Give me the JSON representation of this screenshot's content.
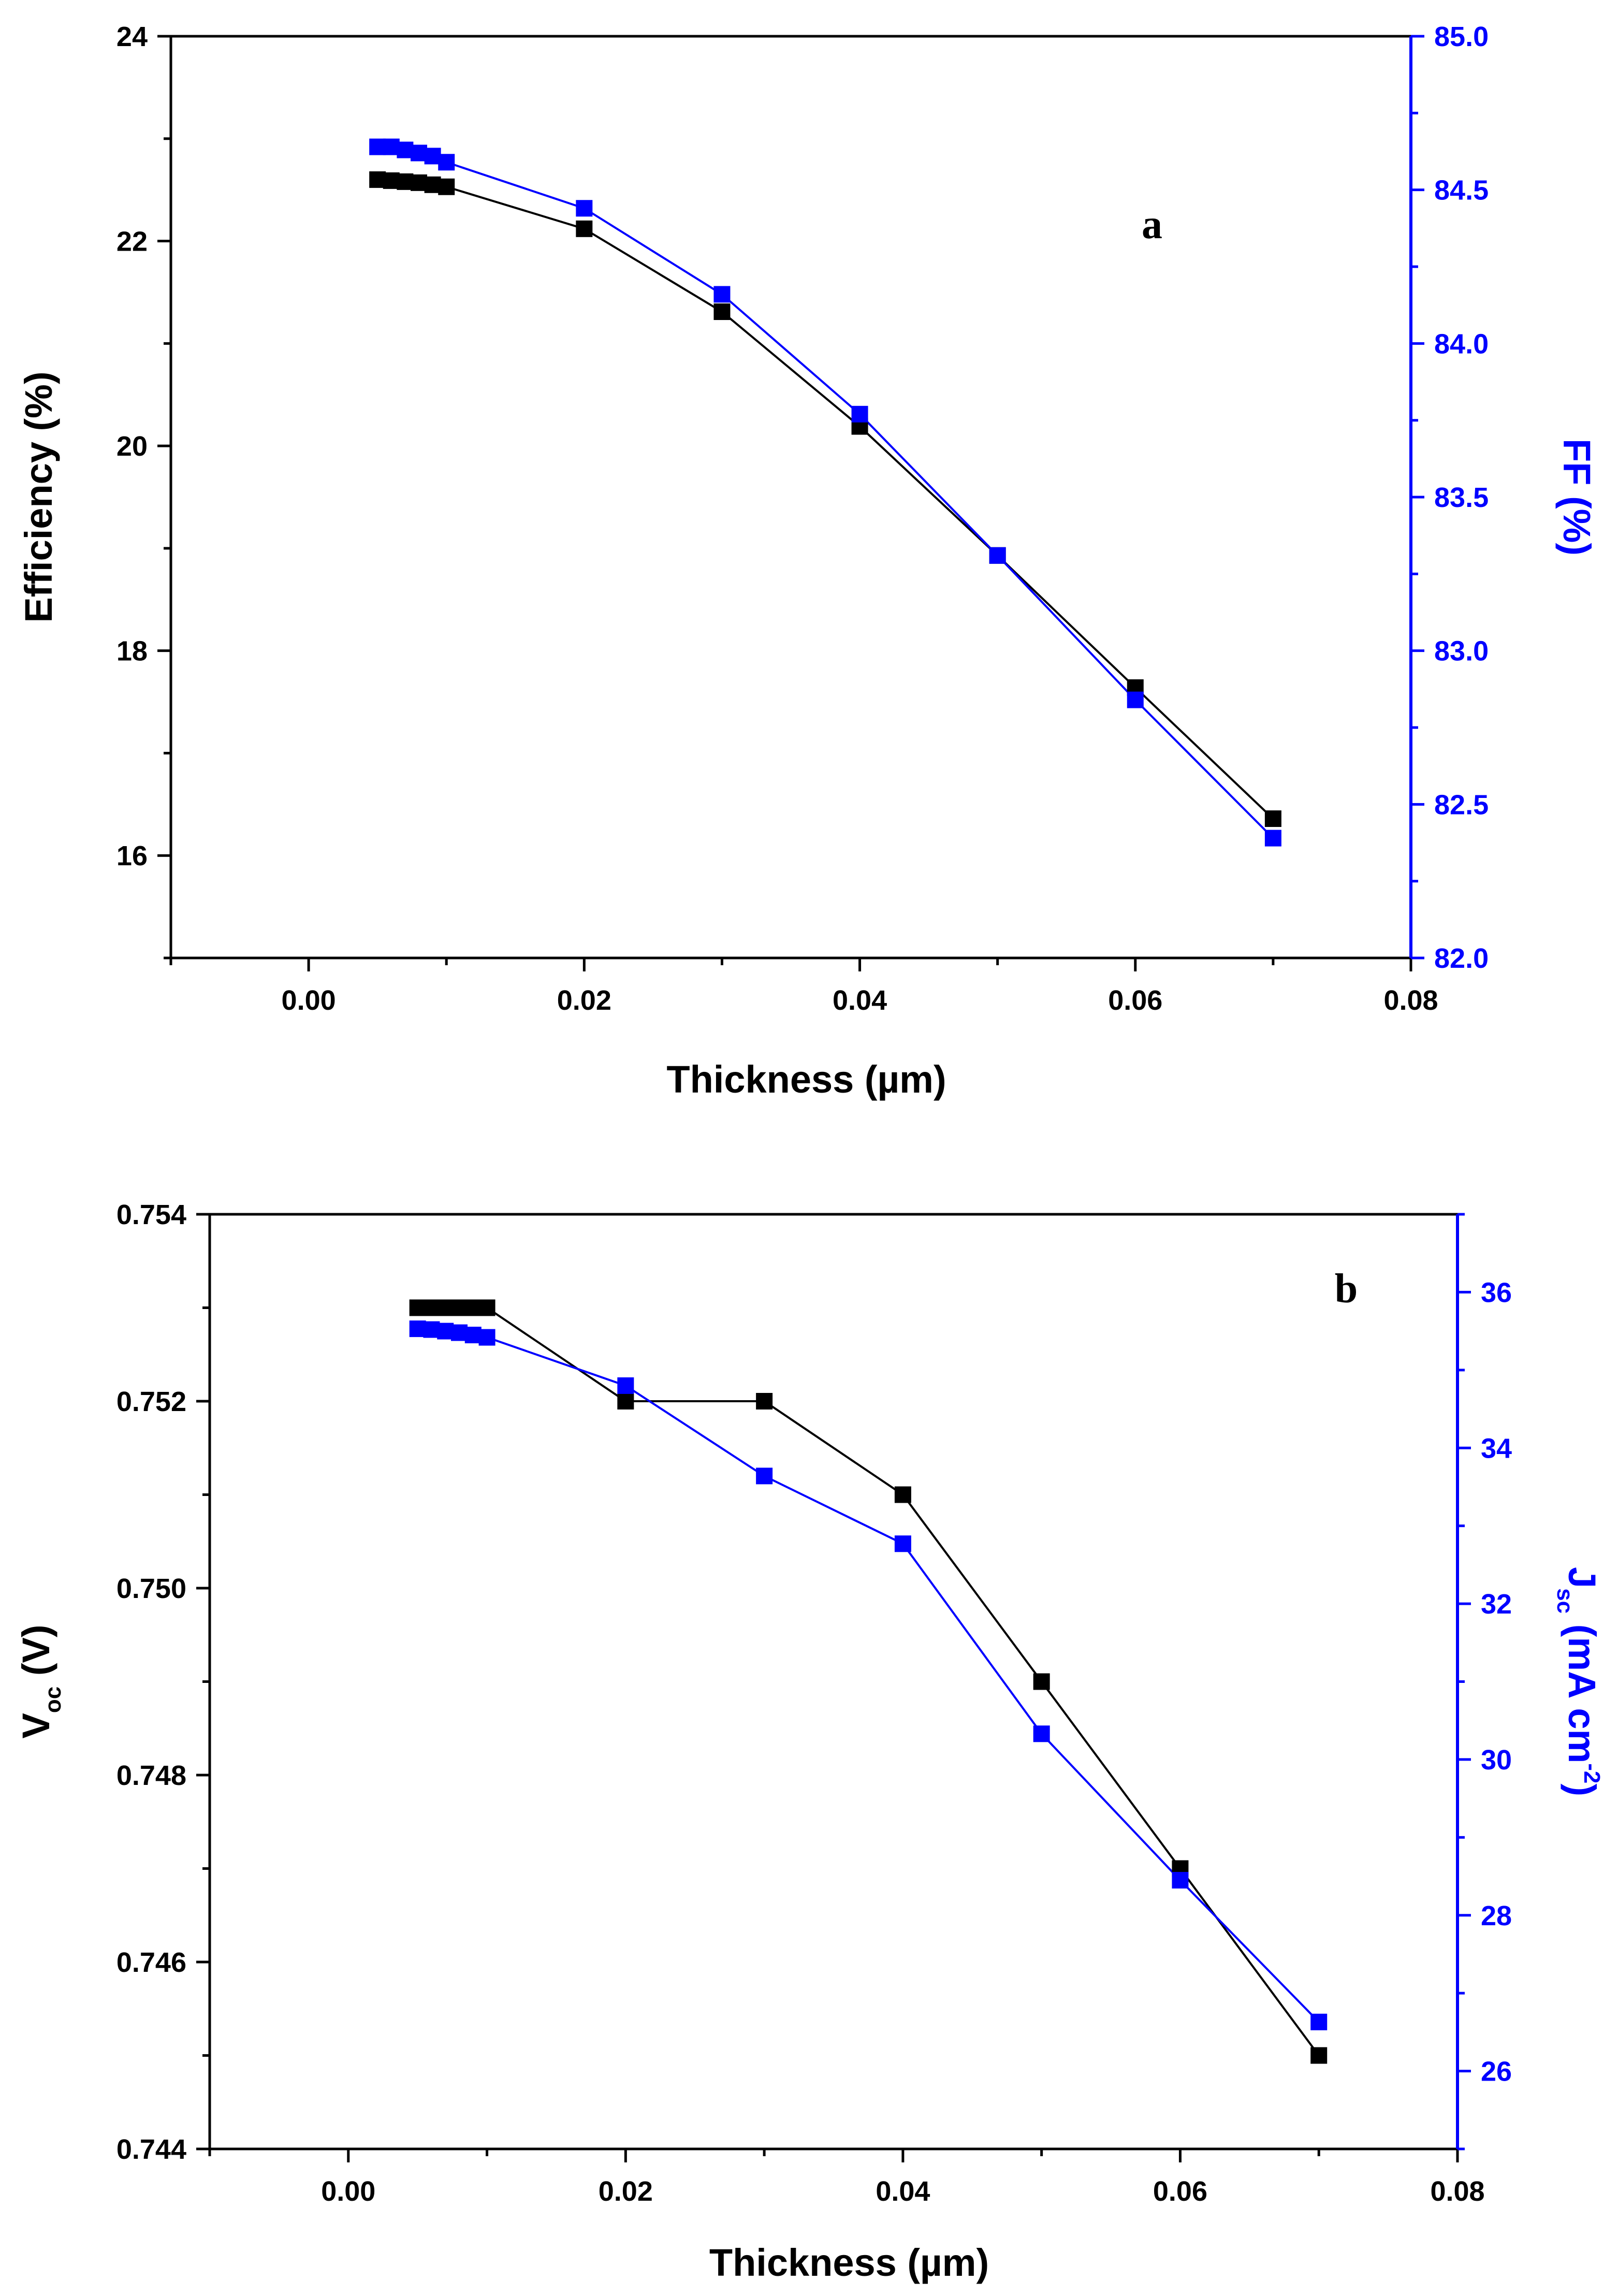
{
  "chart_data": [
    {
      "type": "line",
      "panel_label": "a",
      "xlabel": "Thickness (µm)",
      "xlim": [
        -0.01,
        0.08
      ],
      "xticks": [
        0.0,
        0.02,
        0.04,
        0.06,
        0.08
      ],
      "xtick_labels": [
        "0.00",
        "0.02",
        "0.04",
        "0.06",
        "0.08"
      ],
      "y_left": {
        "label": "Efficiency (%)",
        "lim": [
          15,
          24
        ],
        "ticks": [
          16,
          18,
          20,
          22,
          24
        ],
        "tick_labels": [
          "16",
          "18",
          "20",
          "22",
          "24"
        ],
        "color": "#000000"
      },
      "y_right": {
        "label": "FF (%)",
        "lim": [
          82.0,
          85.0
        ],
        "ticks": [
          82.0,
          82.5,
          83.0,
          83.5,
          84.0,
          84.5,
          85.0
        ],
        "tick_labels": [
          "82.0",
          "82.5",
          "83.0",
          "83.5",
          "84.0",
          "84.5",
          "85.0"
        ],
        "color": "#0000ff"
      },
      "series": [
        {
          "name": "Efficiency",
          "axis": "left",
          "color": "#000000",
          "x": [
            0.005,
            0.006,
            0.007,
            0.008,
            0.009,
            0.01,
            0.02,
            0.03,
            0.04,
            0.05,
            0.06,
            0.07
          ],
          "y": [
            22.6,
            22.59,
            22.58,
            22.57,
            22.55,
            22.53,
            22.12,
            21.31,
            20.19,
            18.93,
            17.64,
            16.36
          ]
        },
        {
          "name": "FF",
          "axis": "right",
          "color": "#0000ff",
          "x": [
            0.005,
            0.006,
            0.007,
            0.008,
            0.009,
            0.01,
            0.02,
            0.03,
            0.04,
            0.05,
            0.06,
            0.07
          ],
          "y": [
            84.64,
            84.64,
            84.63,
            84.62,
            84.61,
            84.59,
            84.44,
            84.16,
            83.77,
            83.31,
            82.84,
            82.39
          ]
        }
      ]
    },
    {
      "type": "line",
      "panel_label": "b",
      "xlabel": "Thickness (µm)",
      "xlim": [
        -0.01,
        0.08
      ],
      "xticks": [
        0.0,
        0.02,
        0.04,
        0.06,
        0.08
      ],
      "xtick_labels": [
        "0.00",
        "0.02",
        "0.04",
        "0.06",
        "0.08"
      ],
      "y_left": {
        "label_main": "V",
        "label_sub": "oc",
        "label_rest": " (V)",
        "lim": [
          0.744,
          0.754
        ],
        "ticks": [
          0.744,
          0.746,
          0.748,
          0.75,
          0.752,
          0.754
        ],
        "tick_labels": [
          "0.744",
          "0.746",
          "0.748",
          "0.750",
          "0.752",
          "0.754"
        ],
        "color": "#000000"
      },
      "y_right": {
        "label_main": "J",
        "label_sub": "sc",
        "label_rest": " (mA cm",
        "label_sup": "-2",
        "label_end": ")",
        "lim": [
          25,
          37
        ],
        "ticks": [
          26,
          28,
          30,
          32,
          34,
          36
        ],
        "tick_labels": [
          "26",
          "28",
          "30",
          "32",
          "34",
          "36"
        ],
        "color": "#0000ff"
      },
      "series": [
        {
          "name": "Voc",
          "axis": "left",
          "color": "#000000",
          "x": [
            0.005,
            0.006,
            0.007,
            0.008,
            0.009,
            0.01,
            0.02,
            0.03,
            0.04,
            0.05,
            0.06,
            0.07
          ],
          "y": [
            0.753,
            0.753,
            0.753,
            0.753,
            0.753,
            0.753,
            0.752,
            0.752,
            0.751,
            0.749,
            0.747,
            0.745
          ]
        },
        {
          "name": "Jsc",
          "axis": "right",
          "color": "#0000ff",
          "x": [
            0.005,
            0.006,
            0.007,
            0.008,
            0.009,
            0.01,
            0.02,
            0.03,
            0.04,
            0.05,
            0.06,
            0.07
          ],
          "y": [
            35.53,
            35.52,
            35.5,
            35.48,
            35.45,
            35.42,
            34.8,
            33.64,
            32.77,
            30.33,
            28.45,
            26.63
          ]
        }
      ]
    }
  ]
}
